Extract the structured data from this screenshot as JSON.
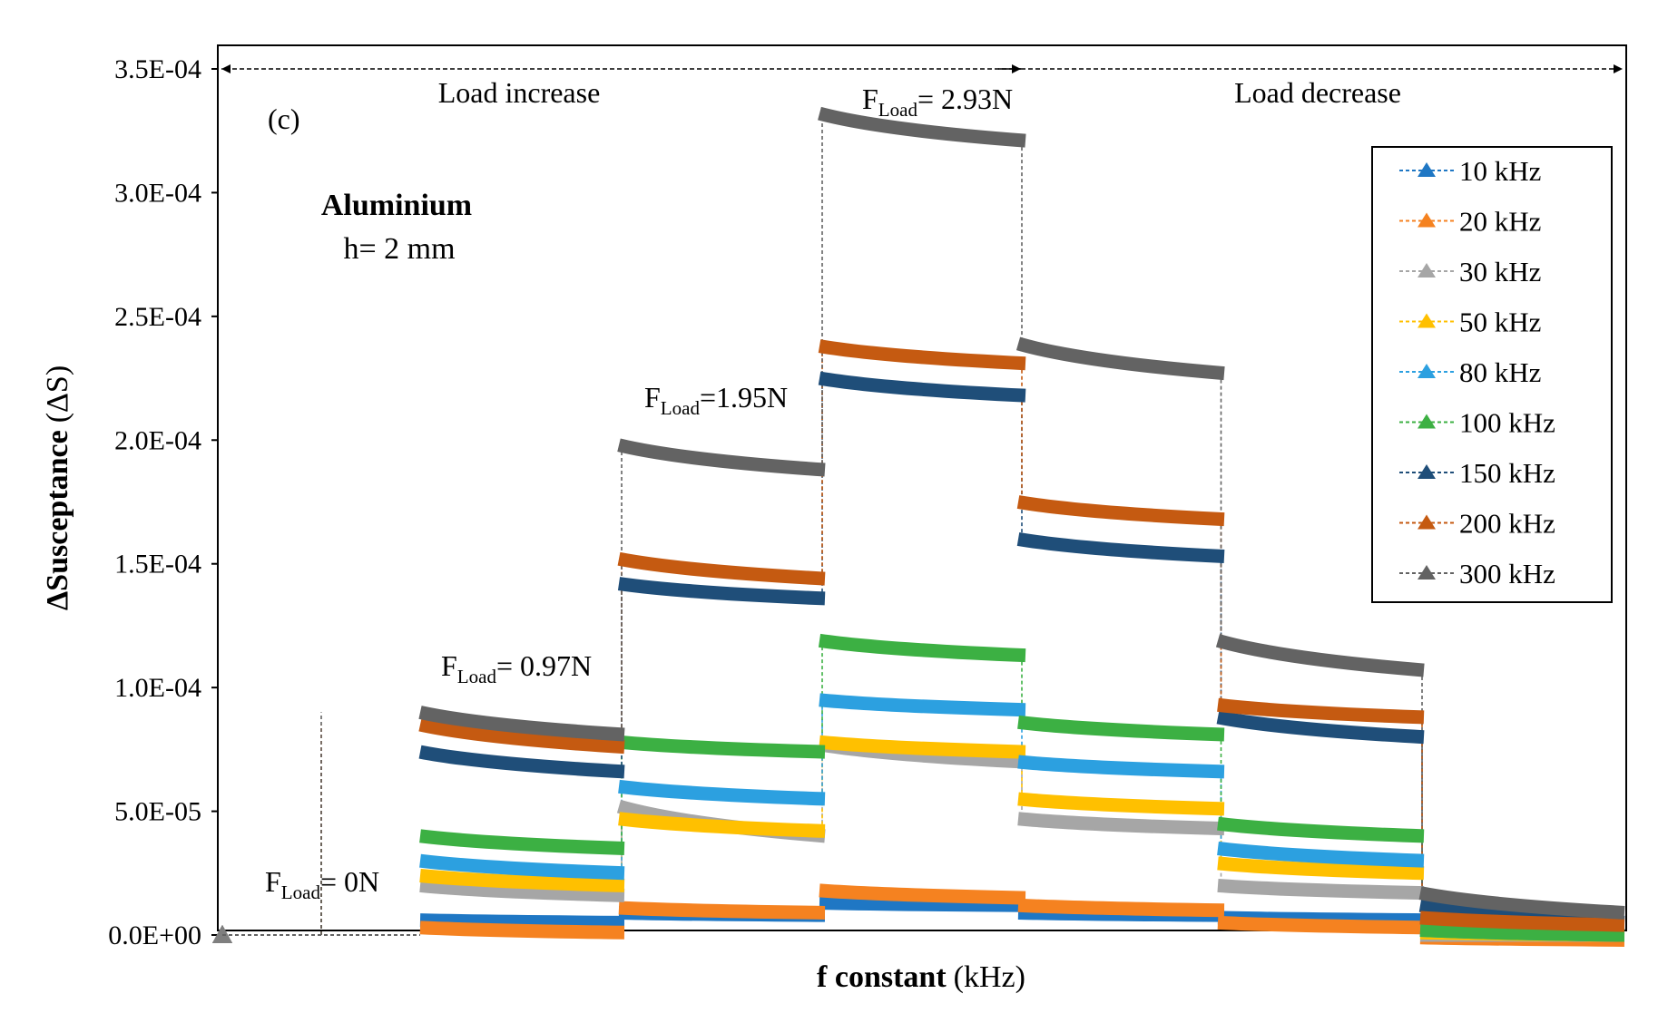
{
  "chart_data": {
    "type": "line",
    "panel_label": "(c)",
    "material": "Aluminium",
    "thickness": "h= 2 mm",
    "ylabel_bold": "ΔSusceptance",
    "ylabel_unit": "(ΔS)",
    "xlabel_bold": "f  constant",
    "xlabel_unit": "(kHz)",
    "ylim": [
      0,
      0.00035
    ],
    "yticks": [
      0,
      5e-05,
      0.0001,
      0.00015,
      0.0002,
      0.00025,
      0.0003,
      0.00035
    ],
    "ytick_labels": [
      "0.0E+00",
      "5.0E-05",
      "1.0E-04",
      "1.5E-04",
      "2.0E-04",
      "2.5E-04",
      "3.0E-04",
      "3.5E-04"
    ],
    "grid": false,
    "legend_position": "top-right",
    "phases": {
      "increase": "Load increase",
      "decrease": "Load decrease"
    },
    "load_labels": [
      {
        "prefix": "F",
        "sub": "Load",
        "value": "= 0N"
      },
      {
        "prefix": "F",
        "sub": "Load",
        "value": "= 0.97N"
      },
      {
        "prefix": "F",
        "sub": "Load",
        "value": "=1.95N"
      },
      {
        "prefix": "F",
        "sub": "Load",
        "value": "= 2.93N"
      }
    ],
    "segments": [
      "0N",
      "0.97N",
      "1.95N",
      "2.93N",
      "1.95N",
      "0.97N",
      "0N"
    ],
    "series": [
      {
        "name": "10 kHz",
        "color": "#1f77c4",
        "start": [
          0,
          6e-06,
          9e-06,
          1.3e-05,
          9e-06,
          7e-06,
          0.0
        ],
        "end": [
          0,
          5e-06,
          8e-06,
          1.2e-05,
          8e-06,
          6e-06,
          0.0
        ]
      },
      {
        "name": "20 kHz",
        "color": "#f58220",
        "start": [
          0,
          3e-06,
          1.1e-05,
          1.8e-05,
          1.2e-05,
          5e-06,
          -1e-06
        ],
        "end": [
          0,
          1e-06,
          9e-06,
          1.5e-05,
          1e-05,
          3e-06,
          -2e-06
        ]
      },
      {
        "name": "30 kHz",
        "color": "#a6a6a6",
        "start": [
          0,
          2e-05,
          5.2e-05,
          7.7e-05,
          4.7e-05,
          2e-05,
          0.0
        ],
        "end": [
          0,
          1.6e-05,
          4e-05,
          7e-05,
          4.3e-05,
          1.7e-05,
          0.0
        ]
      },
      {
        "name": "50 kHz",
        "color": "#ffc000",
        "start": [
          0,
          2.4e-05,
          4.7e-05,
          7.8e-05,
          5.5e-05,
          2.9e-05,
          1e-06
        ],
        "end": [
          0,
          2e-05,
          4.2e-05,
          7.4e-05,
          5.1e-05,
          2.5e-05,
          0.0
        ]
      },
      {
        "name": "80 kHz",
        "color": "#2ca0e0",
        "start": [
          0,
          3e-05,
          6e-05,
          9.5e-05,
          7e-05,
          3.5e-05,
          2e-06
        ],
        "end": [
          0,
          2.5e-05,
          5.5e-05,
          9.1e-05,
          6.6e-05,
          3e-05,
          0.0
        ]
      },
      {
        "name": "100 kHz",
        "color": "#3cb043",
        "start": [
          0,
          4e-05,
          7.8e-05,
          0.000119,
          8.6e-05,
          4.5e-05,
          2e-06
        ],
        "end": [
          0,
          3.5e-05,
          7.4e-05,
          0.000113,
          8.1e-05,
          4e-05,
          0.0
        ]
      },
      {
        "name": "150 kHz",
        "color": "#1f4e79",
        "start": [
          0,
          7.4e-05,
          0.000142,
          0.000225,
          0.00016,
          8.8e-05,
          1.2e-05
        ],
        "end": [
          0,
          6.6e-05,
          0.000136,
          0.000218,
          0.000153,
          8e-05,
          5e-06
        ]
      },
      {
        "name": "200 kHz",
        "color": "#c55a11",
        "start": [
          0,
          8.5e-05,
          0.000152,
          0.000238,
          0.000175,
          9.3e-05,
          7e-06
        ],
        "end": [
          0,
          7.6e-05,
          0.000144,
          0.000231,
          0.000168,
          8.8e-05,
          4e-06
        ]
      },
      {
        "name": "300 kHz",
        "color": "#636363",
        "start": [
          0,
          9e-05,
          0.000198,
          0.000332,
          0.000239,
          0.000119,
          1.7e-05
        ],
        "end": [
          0,
          8.1e-05,
          0.000188,
          0.000321,
          0.000227,
          0.000107,
          9e-06
        ]
      }
    ]
  }
}
